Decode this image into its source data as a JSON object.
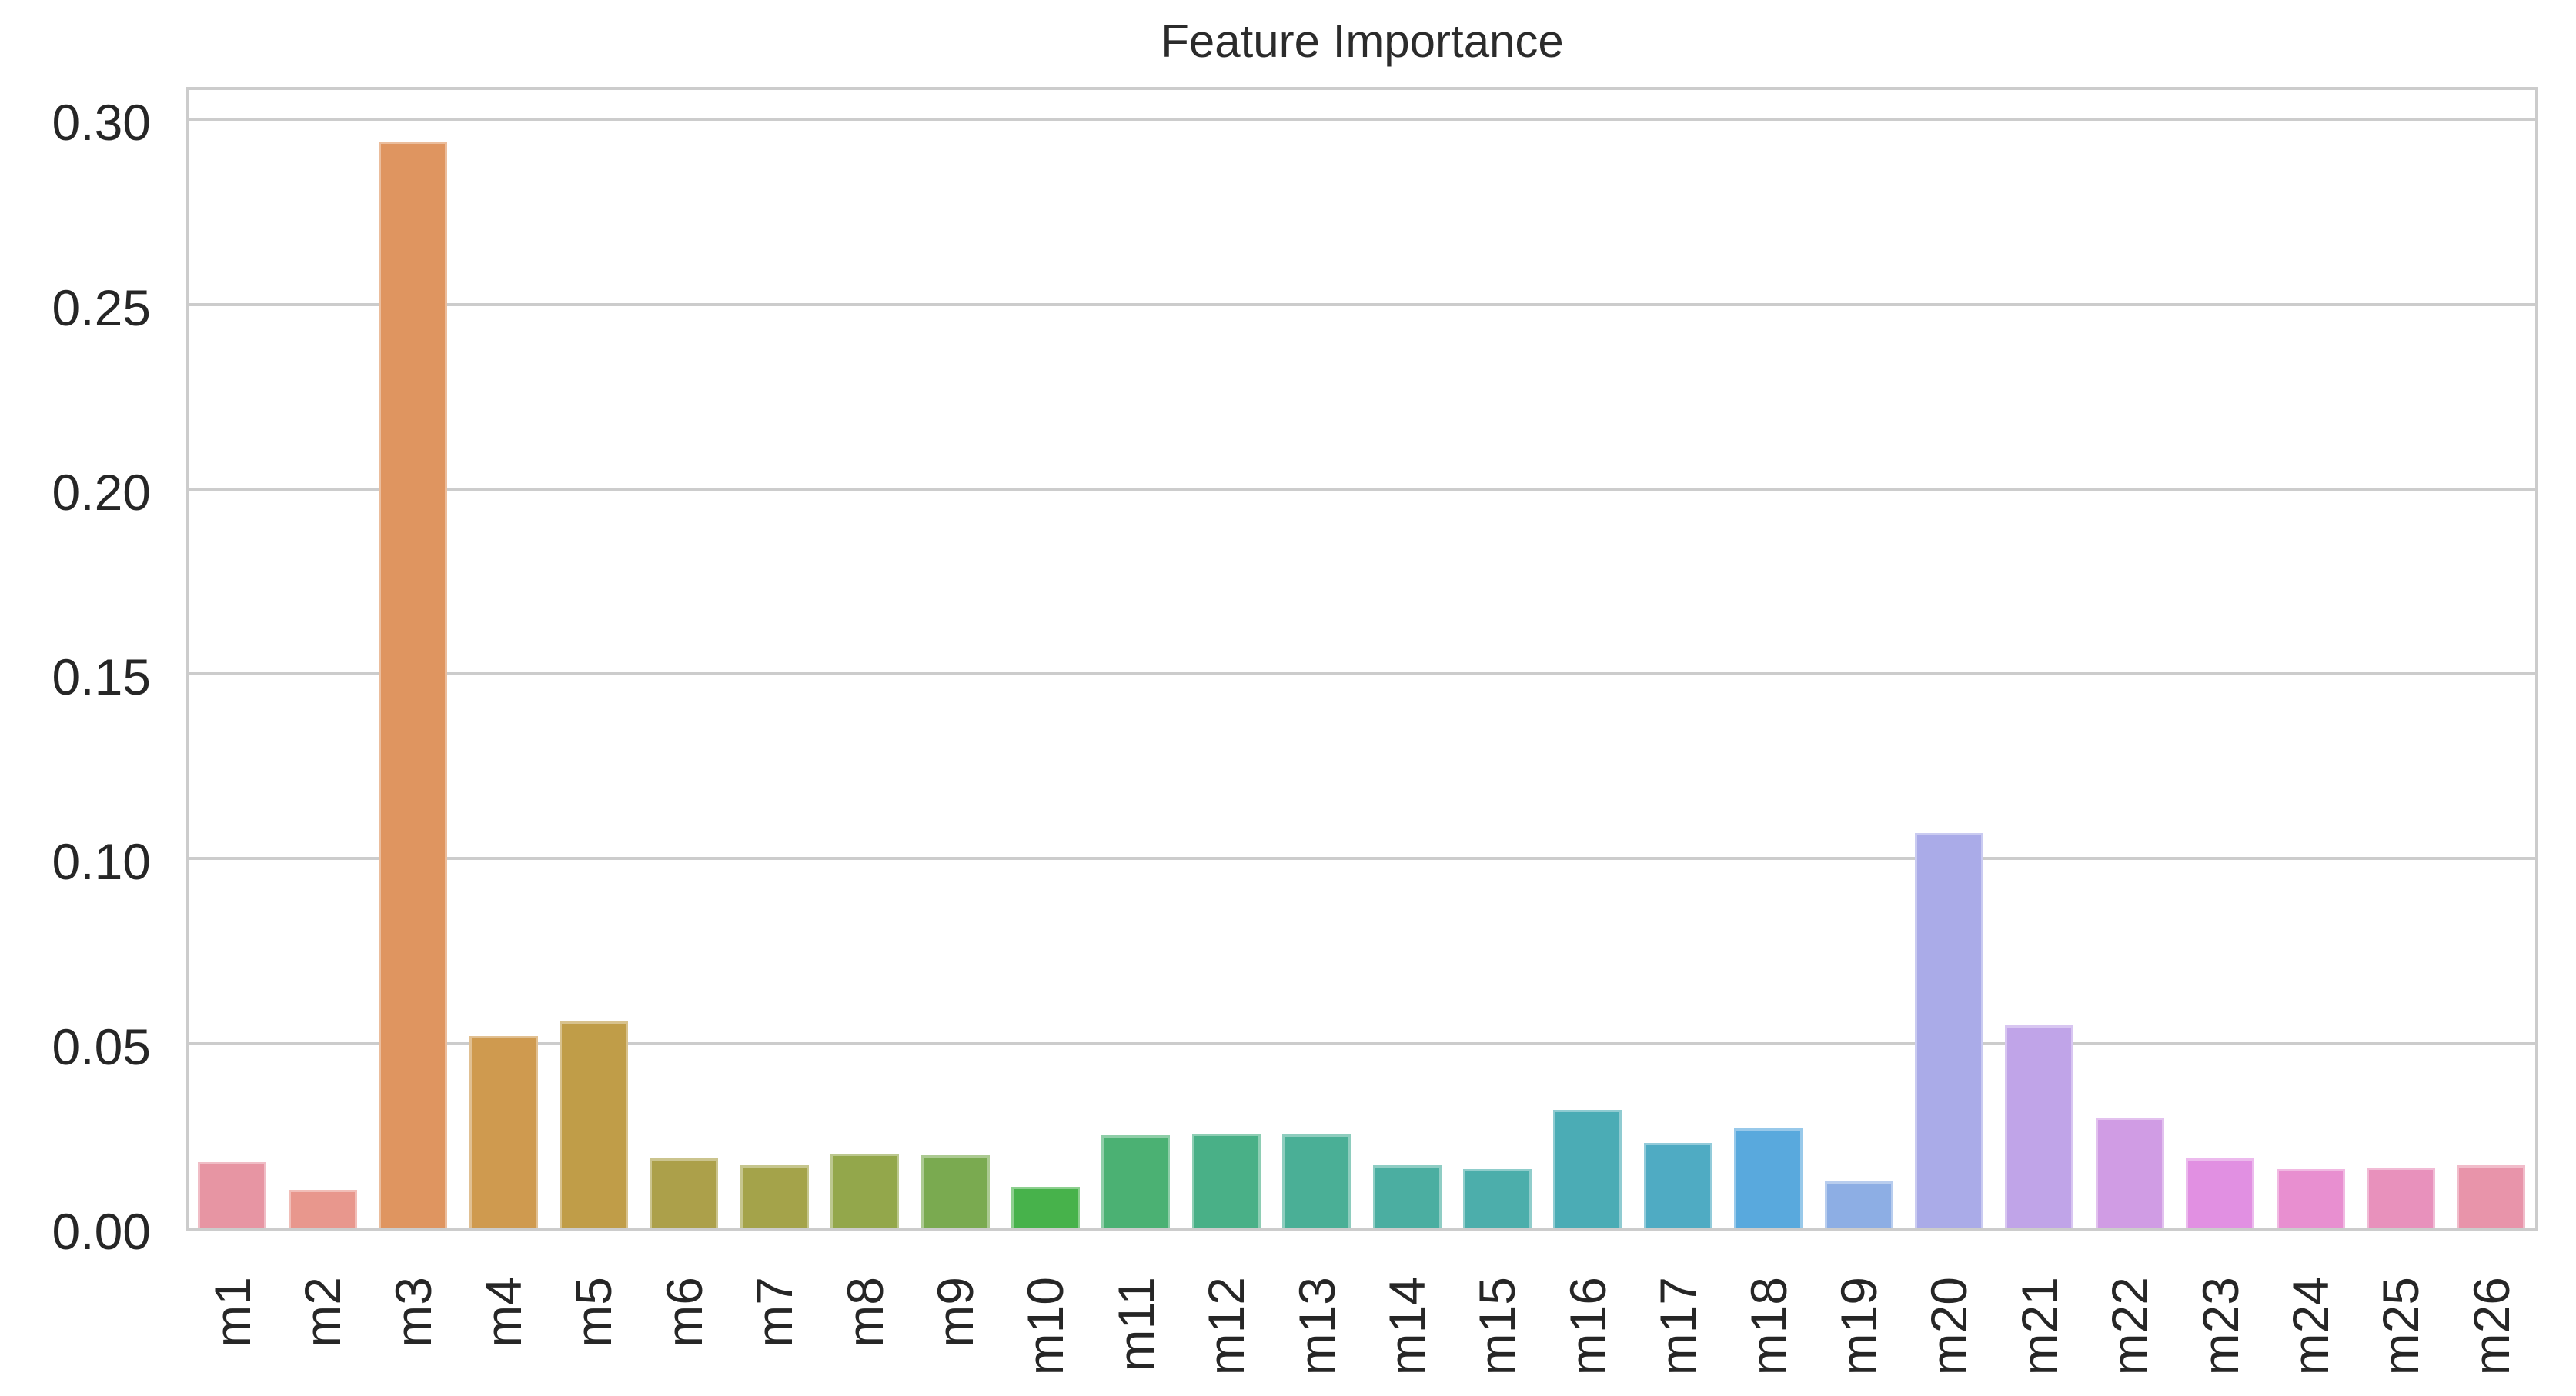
{
  "chart_data": {
    "type": "bar",
    "title": "Feature Importance",
    "xlabel": "",
    "ylabel": "",
    "categories": [
      "m1",
      "m2",
      "m3",
      "m4",
      "m5",
      "m6",
      "m7",
      "m8",
      "m9",
      "m10",
      "m11",
      "m12",
      "m13",
      "m14",
      "m15",
      "m16",
      "m17",
      "m18",
      "m19",
      "m20",
      "m21",
      "m22",
      "m23",
      "m24",
      "m25",
      "m26"
    ],
    "values": [
      0.018,
      0.0105,
      0.294,
      0.052,
      0.056,
      0.019,
      0.017,
      0.0202,
      0.0198,
      0.0113,
      0.0252,
      0.0257,
      0.0254,
      0.017,
      0.016,
      0.032,
      0.023,
      0.027,
      0.0126,
      0.107,
      0.055,
      0.03,
      0.019,
      0.016,
      0.0165,
      0.017
    ],
    "bar_colors": [
      "#e795a3",
      "#e8978d",
      "#df9560",
      "#cf9a4f",
      "#c09d48",
      "#aca04a",
      "#a4a34a",
      "#93a74b",
      "#7aaa50",
      "#47b24b",
      "#4bb173",
      "#49b087",
      "#4aaf96",
      "#4baea1",
      "#4caeab",
      "#4bacb5",
      "#4fabc3",
      "#59a9dd",
      "#8daee4",
      "#aaabe8",
      "#c0a4e8",
      "#d09ce4",
      "#e190e2",
      "#e88fd0",
      "#e891bc",
      "#e894aa"
    ],
    "yticks": [
      0.0,
      0.05,
      0.1,
      0.15,
      0.2,
      0.25,
      0.3
    ],
    "ytick_labels": [
      "0.00",
      "0.05",
      "0.10",
      "0.15",
      "0.20",
      "0.25",
      "0.30"
    ],
    "ylim": [
      0,
      0.3083
    ],
    "grid": true,
    "legend": null,
    "style": {
      "background": "#ffffff",
      "grid_color": "#cccccc",
      "spine_color": "#cccccc",
      "text_color": "#262626"
    }
  }
}
